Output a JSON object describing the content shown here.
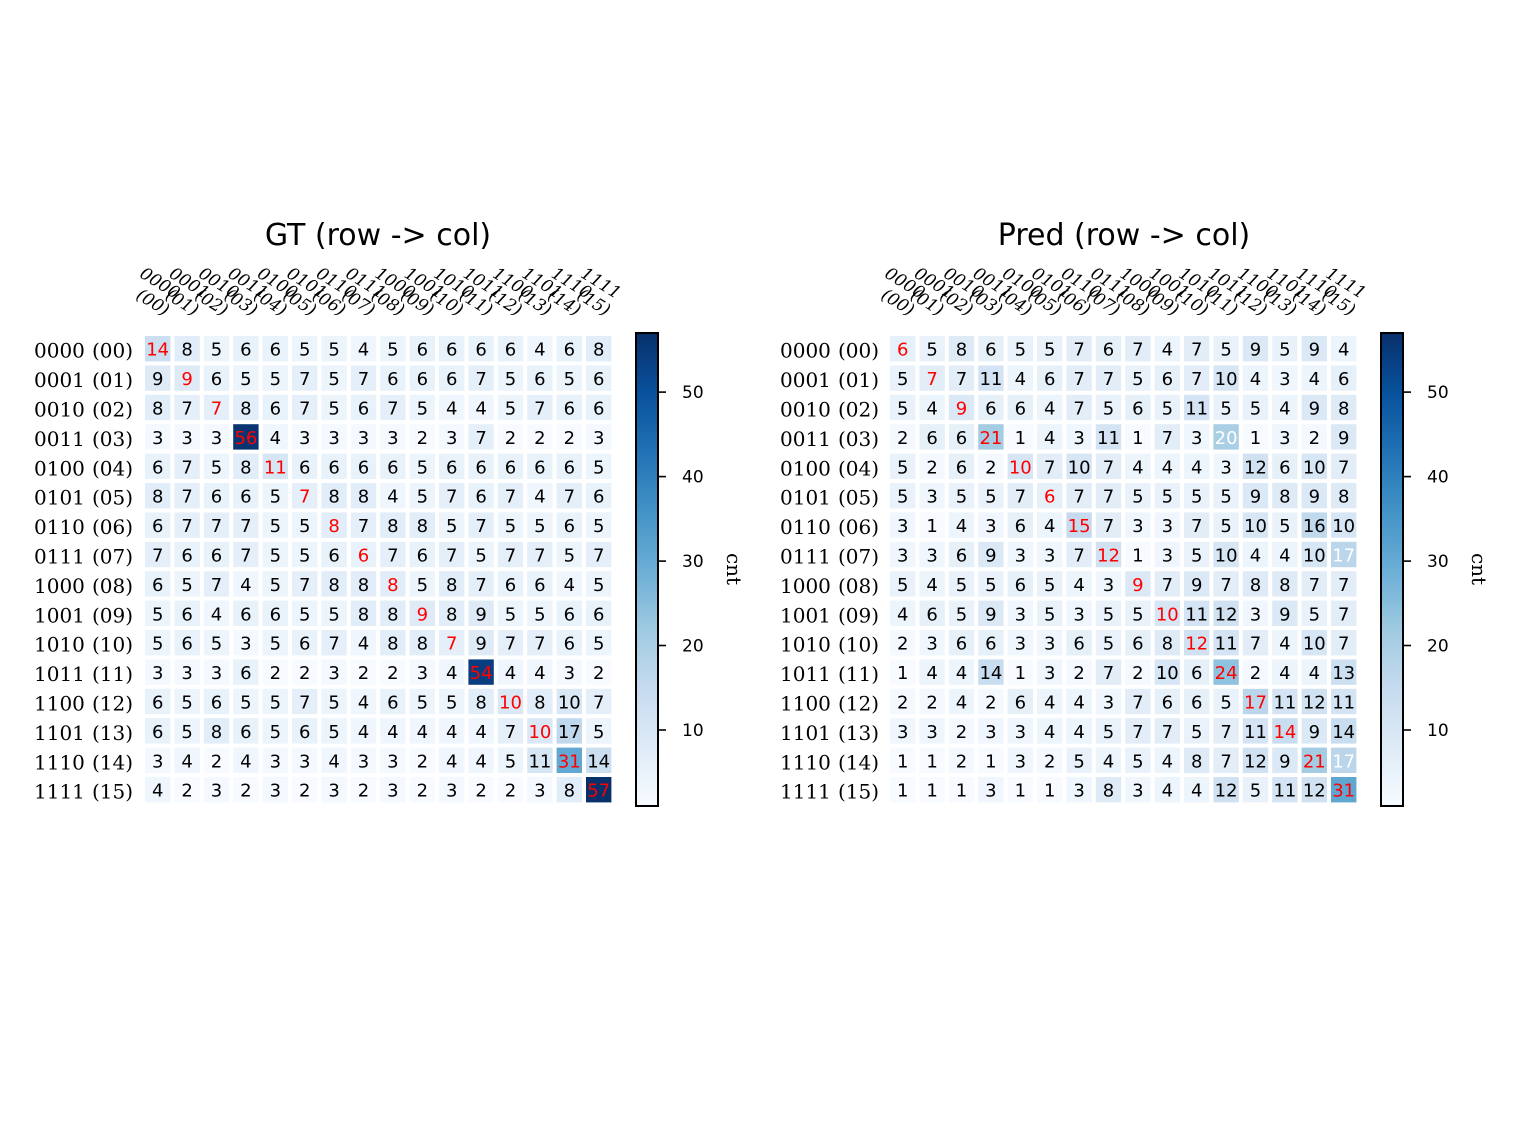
{
  "colors": {
    "cmap": [
      "#f7fbff",
      "#deebf7",
      "#c6dbef",
      "#9ecae1",
      "#6baed6",
      "#4292c6",
      "#2171b5",
      "#08519c",
      "#08306b"
    ],
    "diagonal_text": "#ff0000",
    "text_dark": "#000000",
    "text_light": "#ffffff"
  },
  "row_labels": [
    {
      "bits": "0000",
      "idx": "(00)"
    },
    {
      "bits": "0001",
      "idx": "(01)"
    },
    {
      "bits": "0010",
      "idx": "(02)"
    },
    {
      "bits": "0011",
      "idx": "(03)"
    },
    {
      "bits": "0100",
      "idx": "(04)"
    },
    {
      "bits": "0101",
      "idx": "(05)"
    },
    {
      "bits": "0110",
      "idx": "(06)"
    },
    {
      "bits": "0111",
      "idx": "(07)"
    },
    {
      "bits": "1000",
      "idx": "(08)"
    },
    {
      "bits": "1001",
      "idx": "(09)"
    },
    {
      "bits": "1010",
      "idx": "(10)"
    },
    {
      "bits": "1011",
      "idx": "(11)"
    },
    {
      "bits": "1100",
      "idx": "(12)"
    },
    {
      "bits": "1101",
      "idx": "(13)"
    },
    {
      "bits": "1110",
      "idx": "(14)"
    },
    {
      "bits": "1111",
      "idx": "(15)"
    }
  ],
  "col_labels": [
    {
      "bits": "0000",
      "idx": "(00)"
    },
    {
      "bits": "0001",
      "idx": "(01)"
    },
    {
      "bits": "0010",
      "idx": "(02)"
    },
    {
      "bits": "0011",
      "idx": "(03)"
    },
    {
      "bits": "0100",
      "idx": "(04)"
    },
    {
      "bits": "0101",
      "idx": "(05)"
    },
    {
      "bits": "0110",
      "idx": "(06)"
    },
    {
      "bits": "0111",
      "idx": "(07)"
    },
    {
      "bits": "1000",
      "idx": "(08)"
    },
    {
      "bits": "1001",
      "idx": "(09)"
    },
    {
      "bits": "1010",
      "idx": "(10)"
    },
    {
      "bits": "1011",
      "idx": "(11)"
    },
    {
      "bits": "1100",
      "idx": "(12)"
    },
    {
      "bits": "1101",
      "idx": "(13)"
    },
    {
      "bits": "1110",
      "idx": "(14)"
    },
    {
      "bits": "1111",
      "idx": "(15)"
    }
  ],
  "chart_data": [
    {
      "type": "heatmap",
      "title": "GT (row -> col)",
      "colorbar_label": "cnt",
      "colorbar_ticks": [
        10,
        20,
        30,
        40,
        50
      ],
      "vmin": 2,
      "vmax": 57,
      "values": [
        [
          14,
          8,
          5,
          6,
          6,
          5,
          5,
          4,
          5,
          6,
          6,
          6,
          6,
          4,
          6,
          8
        ],
        [
          9,
          9,
          6,
          5,
          5,
          7,
          5,
          7,
          6,
          6,
          6,
          7,
          5,
          6,
          5,
          6
        ],
        [
          8,
          7,
          7,
          8,
          6,
          7,
          5,
          6,
          7,
          5,
          4,
          4,
          5,
          7,
          6,
          6
        ],
        [
          3,
          3,
          3,
          56,
          4,
          3,
          3,
          3,
          3,
          2,
          3,
          7,
          2,
          2,
          2,
          3
        ],
        [
          6,
          7,
          5,
          8,
          11,
          6,
          6,
          6,
          6,
          5,
          6,
          6,
          6,
          6,
          6,
          5
        ],
        [
          8,
          7,
          6,
          6,
          5,
          7,
          8,
          8,
          4,
          5,
          7,
          6,
          7,
          4,
          7,
          6
        ],
        [
          6,
          7,
          7,
          7,
          5,
          5,
          8,
          7,
          8,
          8,
          5,
          7,
          5,
          5,
          6,
          5
        ],
        [
          7,
          6,
          6,
          7,
          5,
          5,
          6,
          6,
          7,
          6,
          7,
          5,
          7,
          7,
          5,
          7
        ],
        [
          6,
          5,
          7,
          4,
          5,
          7,
          8,
          8,
          8,
          5,
          8,
          7,
          6,
          6,
          4,
          5
        ],
        [
          5,
          6,
          4,
          6,
          6,
          5,
          5,
          8,
          8,
          9,
          8,
          9,
          5,
          5,
          6,
          6
        ],
        [
          5,
          6,
          5,
          3,
          5,
          6,
          7,
          4,
          8,
          8,
          7,
          9,
          7,
          7,
          6,
          5
        ],
        [
          3,
          3,
          3,
          6,
          2,
          2,
          3,
          2,
          2,
          3,
          4,
          54,
          4,
          4,
          3,
          2
        ],
        [
          6,
          5,
          6,
          5,
          5,
          7,
          5,
          4,
          6,
          5,
          5,
          8,
          10,
          8,
          10,
          7
        ],
        [
          6,
          5,
          8,
          6,
          5,
          6,
          5,
          4,
          4,
          4,
          4,
          4,
          7,
          10,
          17,
          5
        ],
        [
          3,
          4,
          2,
          4,
          3,
          3,
          4,
          3,
          3,
          2,
          4,
          4,
          5,
          11,
          31,
          14
        ],
        [
          4,
          2,
          3,
          2,
          3,
          2,
          3,
          2,
          3,
          2,
          3,
          2,
          2,
          3,
          8,
          57
        ]
      ]
    },
    {
      "type": "heatmap",
      "title": "Pred (row -> col)",
      "colorbar_label": "cnt",
      "colorbar_ticks": [
        10,
        20,
        30,
        40,
        50
      ],
      "vmin": 1,
      "vmax": 57,
      "values": [
        [
          6,
          5,
          8,
          6,
          5,
          5,
          7,
          6,
          7,
          4,
          7,
          5,
          9,
          5,
          9,
          4
        ],
        [
          5,
          7,
          7,
          11,
          4,
          6,
          7,
          7,
          5,
          6,
          7,
          10,
          4,
          3,
          4,
          6
        ],
        [
          5,
          4,
          9,
          6,
          6,
          4,
          7,
          5,
          6,
          5,
          11,
          5,
          5,
          4,
          9,
          8
        ],
        [
          2,
          6,
          6,
          21,
          1,
          4,
          3,
          11,
          1,
          7,
          3,
          20,
          1,
          3,
          2,
          9
        ],
        [
          5,
          2,
          6,
          2,
          10,
          7,
          10,
          7,
          4,
          4,
          4,
          3,
          12,
          6,
          10,
          7
        ],
        [
          5,
          3,
          5,
          5,
          7,
          6,
          7,
          7,
          5,
          5,
          5,
          5,
          9,
          8,
          9,
          8
        ],
        [
          3,
          1,
          4,
          3,
          6,
          4,
          15,
          7,
          3,
          3,
          7,
          5,
          10,
          5,
          16,
          10
        ],
        [
          3,
          3,
          6,
          9,
          3,
          3,
          7,
          12,
          1,
          3,
          5,
          10,
          4,
          4,
          10,
          17
        ],
        [
          5,
          4,
          5,
          5,
          6,
          5,
          4,
          3,
          9,
          7,
          9,
          7,
          8,
          8,
          7,
          7
        ],
        [
          4,
          6,
          5,
          9,
          3,
          5,
          3,
          5,
          5,
          10,
          11,
          12,
          3,
          9,
          5,
          7
        ],
        [
          2,
          3,
          6,
          6,
          3,
          3,
          6,
          5,
          6,
          8,
          12,
          11,
          7,
          4,
          10,
          7
        ],
        [
          1,
          4,
          4,
          14,
          1,
          3,
          2,
          7,
          2,
          10,
          6,
          24,
          2,
          4,
          4,
          13
        ],
        [
          2,
          2,
          4,
          2,
          6,
          4,
          4,
          3,
          7,
          6,
          6,
          5,
          17,
          11,
          12,
          11
        ],
        [
          3,
          3,
          2,
          3,
          3,
          4,
          4,
          5,
          7,
          7,
          5,
          7,
          11,
          14,
          9,
          14
        ],
        [
          1,
          1,
          2,
          1,
          3,
          2,
          5,
          4,
          5,
          4,
          8,
          7,
          12,
          9,
          21,
          17
        ],
        [
          1,
          1,
          1,
          3,
          1,
          1,
          3,
          8,
          3,
          4,
          4,
          12,
          5,
          11,
          12,
          31
        ]
      ]
    }
  ]
}
